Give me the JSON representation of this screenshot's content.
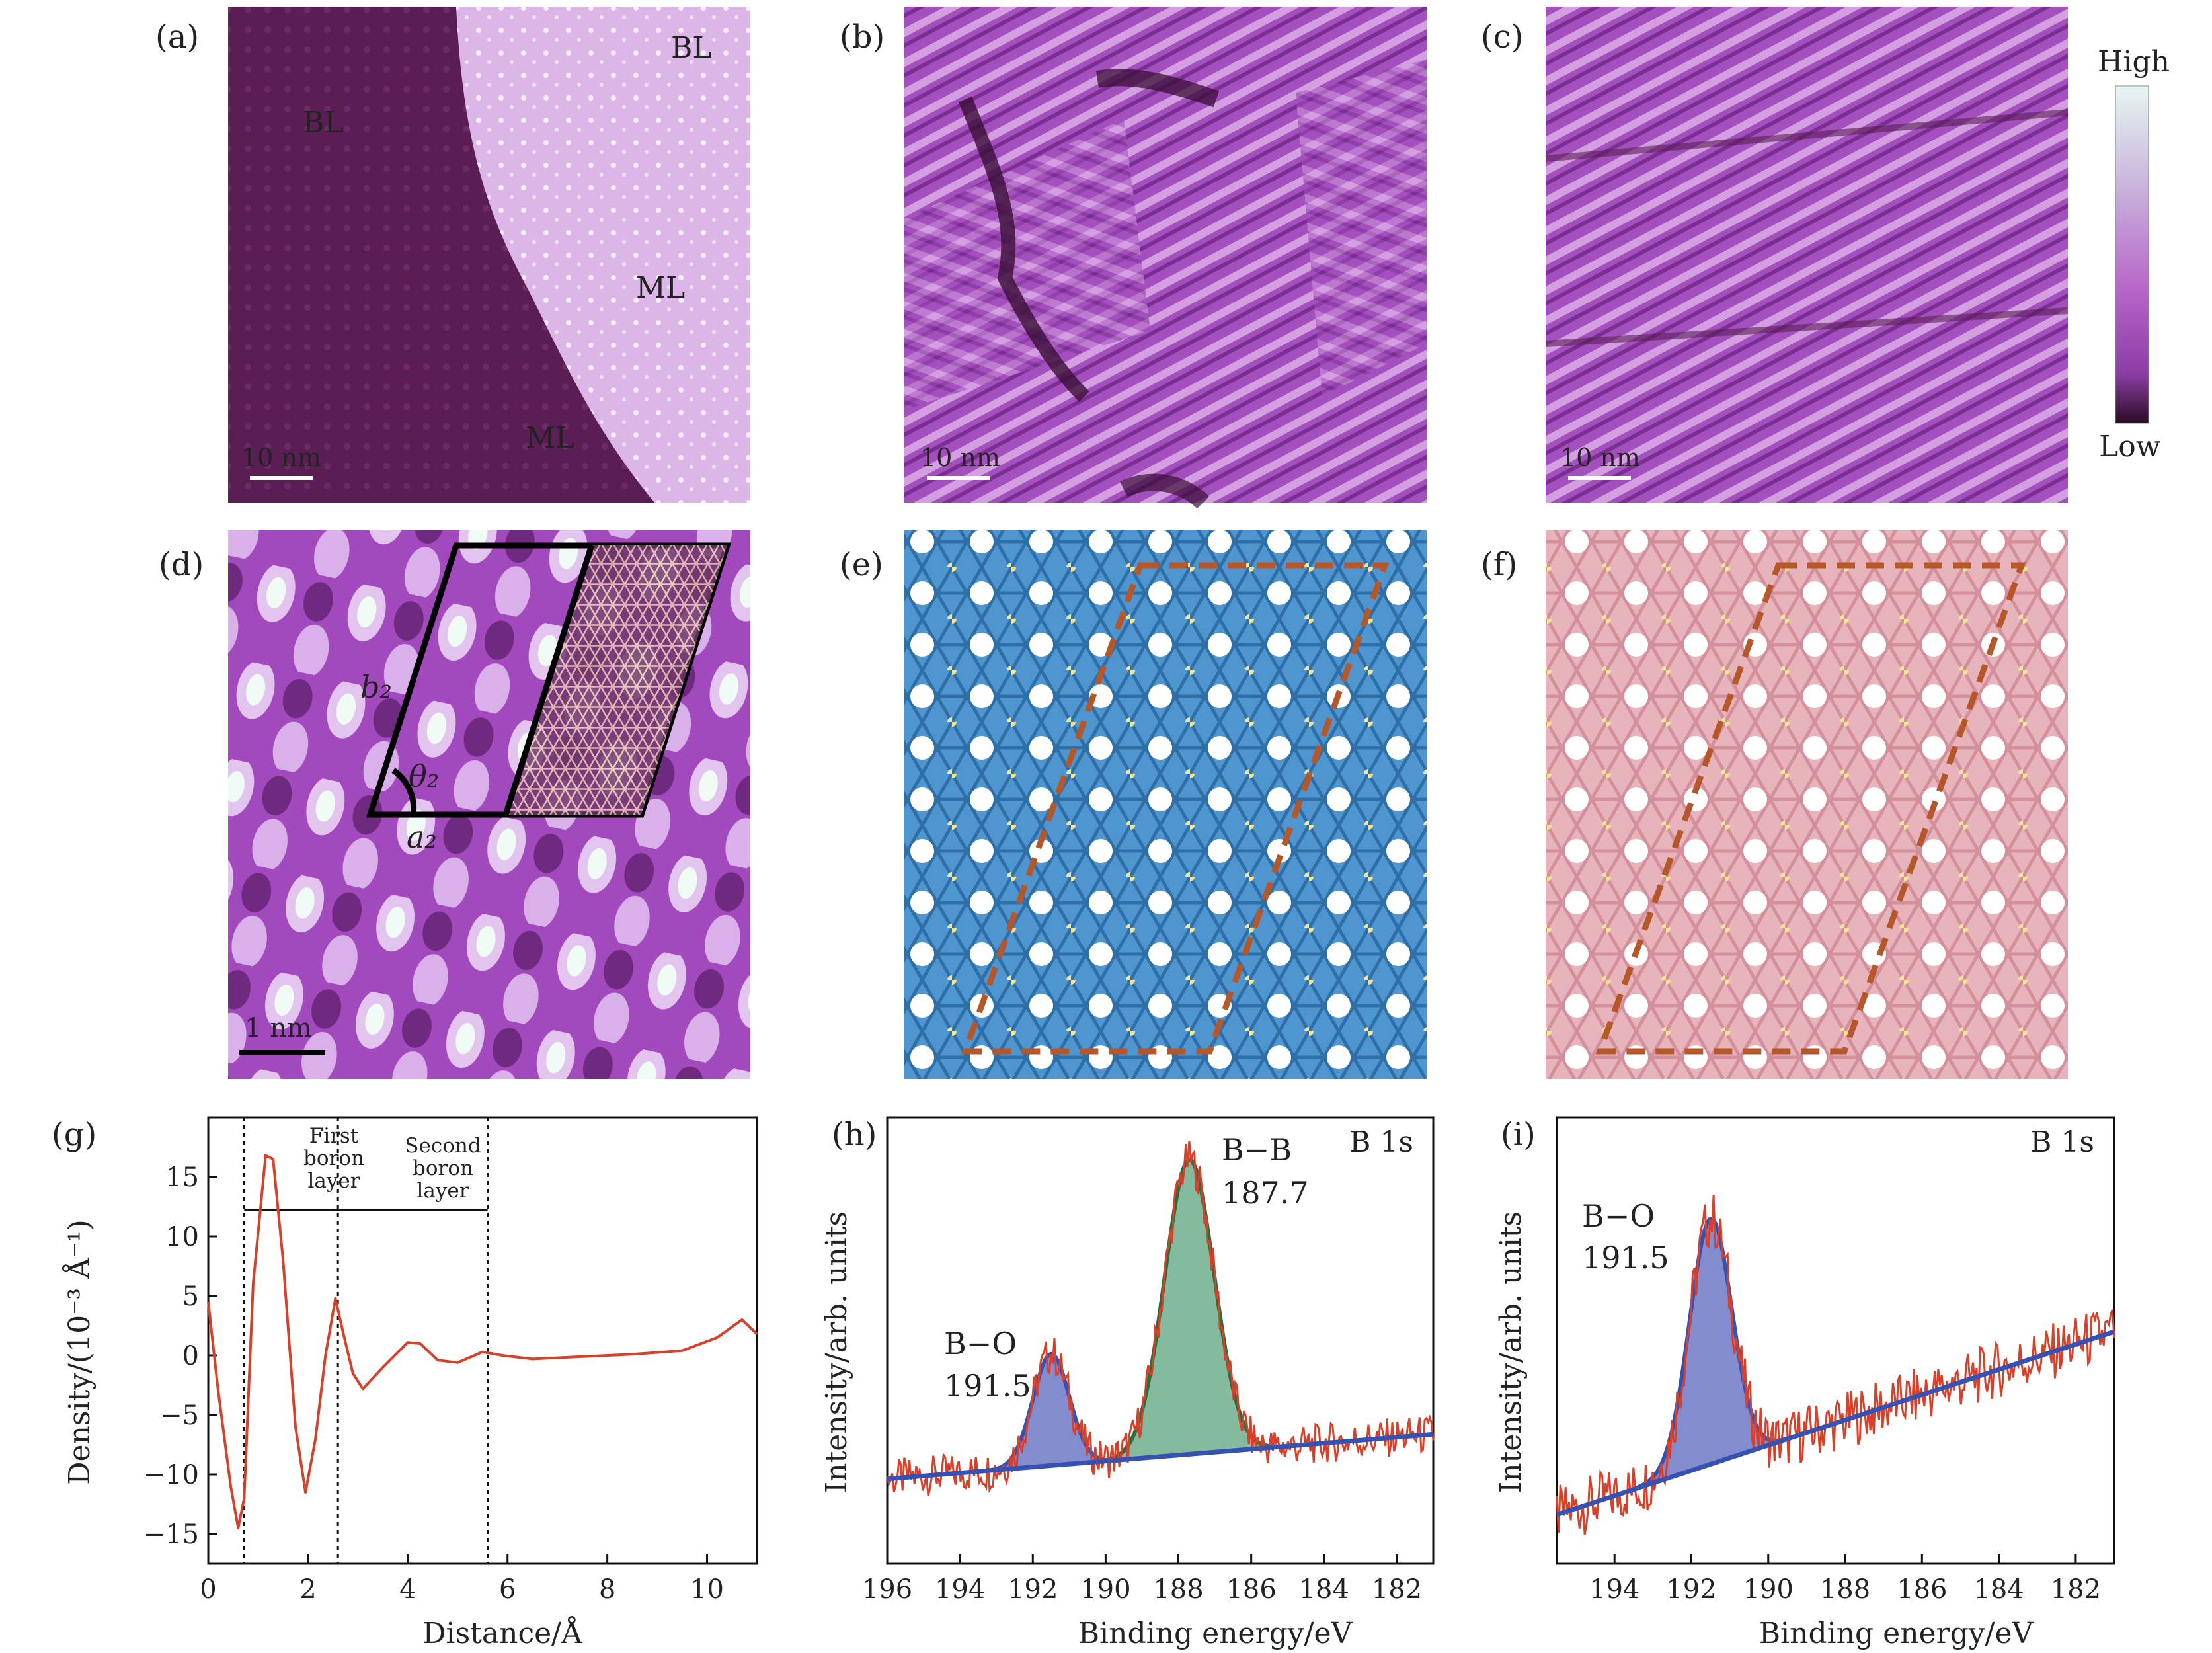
{
  "panels": {
    "a": {
      "label": "(a)",
      "tags": [
        "BL",
        "BL",
        "ML",
        "ML"
      ],
      "scalebar": "10 nm"
    },
    "b": {
      "label": "(b)",
      "scalebar": "10 nm"
    },
    "c": {
      "label": "(c)",
      "scalebar": "10 nm"
    },
    "d": {
      "label": "(d)",
      "scalebar": "1 nm",
      "cell_labels": {
        "a": "a₂",
        "b": "b₂",
        "theta": "θ₂"
      }
    },
    "e": {
      "label": "(e)"
    },
    "f": {
      "label": "(f)"
    },
    "g": {
      "label": "(g)"
    },
    "h": {
      "label": "(h)"
    },
    "i": {
      "label": "(i)"
    }
  },
  "colorbar": {
    "high": "High",
    "low": "Low",
    "colors": [
      "#e6f6f2",
      "#c9b3dc",
      "#b766c9",
      "#8d3ea5",
      "#2a0d26"
    ]
  },
  "colors": {
    "stm_purple": "#a44fbe",
    "boron_blue": "#4f95cf",
    "boron_pink": "#e8b4bc",
    "sulfur_yellow": "#f2e596",
    "cell_brown": "#b6572a",
    "curve_red": "#d8402a",
    "fit_blue": "#3551b4",
    "fit_green": "#2f6b3c",
    "fill_green": "#6fae8c",
    "fill_blue": "#6f78c8"
  },
  "chart_data": [
    {
      "type": "line",
      "panel": "g",
      "xlabel": "Distance/Å",
      "ylabel": "Density/(10⁻³ Å⁻¹)",
      "xlim": [
        0,
        11
      ],
      "ylim": [
        -17.5,
        20
      ],
      "xticks": [
        "0",
        "2",
        "4",
        "6",
        "8",
        "10"
      ],
      "yticks": [
        "15",
        "10",
        "5",
        "0",
        "−5",
        "−10",
        "−15"
      ],
      "annotations": {
        "first": [
          "First",
          "boron",
          "layer"
        ],
        "second": [
          "Second",
          "boron",
          "layer"
        ],
        "vlines": [
          0.72,
          2.6,
          5.6
        ]
      },
      "series": [
        {
          "x": [
            0,
            0.2,
            0.45,
            0.6,
            0.72,
            0.9,
            1.15,
            1.3,
            1.5,
            1.75,
            1.95,
            2.15,
            2.35,
            2.55,
            2.7,
            2.9,
            3.1,
            3.5,
            4.0,
            4.25,
            4.6,
            5.0,
            5.5,
            5.9,
            6.5,
            7.5,
            8.5,
            9.5,
            10.2,
            10.7,
            11.0
          ],
          "values": [
            4.5,
            -3,
            -11,
            -14.5,
            -12,
            6,
            16.8,
            16.5,
            8,
            -6,
            -11.5,
            -7,
            0,
            4.8,
            2,
            -1.5,
            -2.8,
            -1,
            1.1,
            1.0,
            -0.4,
            -0.6,
            0.3,
            0,
            -0.3,
            -0.1,
            0.1,
            0.4,
            1.5,
            3.0,
            1.8
          ]
        }
      ]
    },
    {
      "type": "line",
      "panel": "h",
      "title": "B 1s",
      "xlabel": "Binding energy/eV",
      "ylabel": "Intensity/arb. units",
      "xlim": [
        196,
        181
      ],
      "xticks": [
        "196",
        "194",
        "192",
        "190",
        "188",
        "186",
        "184",
        "182"
      ],
      "peaks": [
        {
          "name": "B−O",
          "center": 191.5,
          "label": [
            "B−O",
            "191.5"
          ]
        },
        {
          "name": "B−B",
          "center": 187.7,
          "label": [
            "B−B",
            "187.7"
          ]
        }
      ]
    },
    {
      "type": "line",
      "panel": "i",
      "title": "B 1s",
      "xlabel": "Binding energy/eV",
      "ylabel": "Intensity/arb. units",
      "xlim": [
        195.5,
        181
      ],
      "xticks": [
        "194",
        "192",
        "190",
        "188",
        "186",
        "184",
        "182"
      ],
      "peaks": [
        {
          "name": "B−O",
          "center": 191.5,
          "label": [
            "B−O",
            "191.5"
          ]
        }
      ]
    }
  ]
}
